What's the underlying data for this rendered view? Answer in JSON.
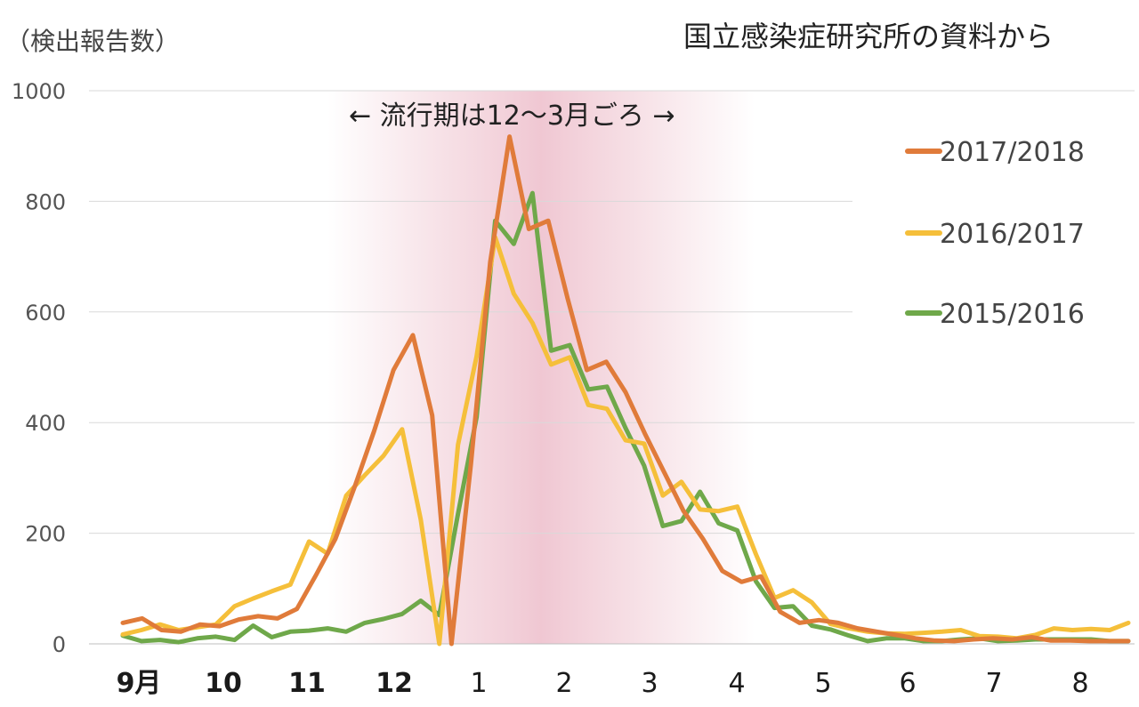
{
  "chart_data": {
    "type": "line",
    "unit_label": "（検出報告数）",
    "source_note": "国立感染症研究所の資料から",
    "season_annotation": "←  流行期は12〜3月ごろ  →",
    "ylim": [
      0,
      1000
    ],
    "y_ticks": [
      "0",
      "200",
      "400",
      "600",
      "800",
      "1000"
    ],
    "x_tick_labels": [
      "9月",
      "10",
      "11",
      "12",
      "1",
      "2",
      "3",
      "4",
      "5",
      "6",
      "7",
      "8"
    ],
    "grid": "horizontal",
    "legend_position": "right",
    "highlight_band": "12〜3",
    "colors": {
      "2017/2018": "#e07b3a",
      "2016/2017": "#f5bf3a",
      "2015/2016": "#6fa84a",
      "band": "#f2cfd8"
    },
    "series": [
      {
        "name": "2017/2018",
        "values": [
          38,
          46,
          25,
          22,
          35,
          32,
          44,
          50,
          46,
          63,
          125,
          190,
          285,
          385,
          495,
          558,
          413,
          0,
          325,
          690,
          917,
          750,
          765,
          625,
          495,
          510,
          455,
          380,
          310,
          240,
          190,
          132,
          112,
          122,
          58,
          38,
          43,
          38,
          28,
          22,
          16,
          10,
          6,
          5,
          8,
          10,
          8,
          12,
          6,
          6,
          5,
          5,
          5
        ]
      },
      {
        "name": "2016/2017",
        "values": [
          17,
          25,
          35,
          25,
          30,
          35,
          68,
          82,
          95,
          107,
          185,
          163,
          268,
          305,
          340,
          388,
          225,
          0,
          360,
          520,
          735,
          633,
          580,
          505,
          518,
          432,
          425,
          368,
          362,
          268,
          293,
          243,
          240,
          248,
          162,
          83,
          97,
          75,
          36,
          28,
          22,
          19,
          18,
          20,
          22,
          25,
          14,
          13,
          10,
          16,
          28,
          25,
          27,
          25,
          38
        ]
      },
      {
        "name": "2015/2016",
        "values": [
          15,
          5,
          7,
          3,
          10,
          13,
          7,
          33,
          12,
          22,
          24,
          28,
          22,
          38,
          45,
          54,
          78,
          52,
          235,
          410,
          765,
          723,
          815,
          530,
          540,
          460,
          465,
          390,
          322,
          213,
          222,
          275,
          218,
          205,
          113,
          65,
          68,
          33,
          26,
          15,
          5,
          10,
          10,
          5,
          5,
          8,
          10,
          5,
          6,
          8,
          8,
          8,
          8,
          5,
          5
        ]
      }
    ]
  }
}
